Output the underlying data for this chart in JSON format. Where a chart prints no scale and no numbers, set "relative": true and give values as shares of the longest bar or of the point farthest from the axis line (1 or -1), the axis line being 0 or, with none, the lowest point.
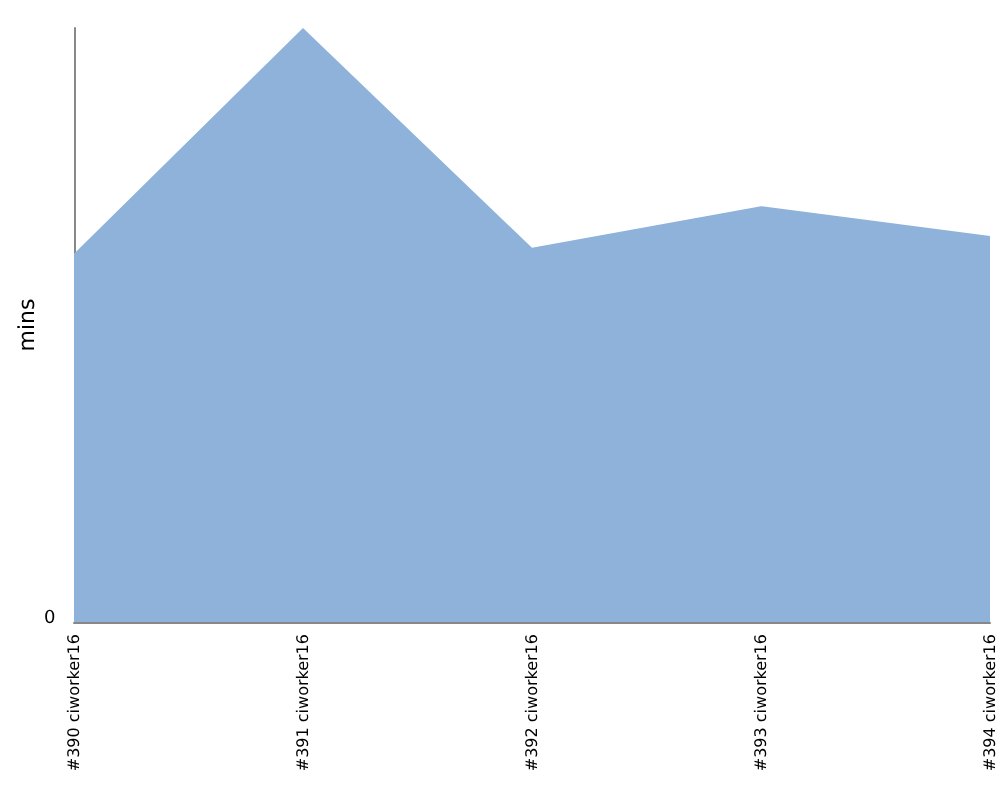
{
  "chart_data": {
    "type": "area",
    "ylabel": "mins",
    "relative": true,
    "annotations": [
      "0"
    ],
    "categories": [
      "#390 ciworker16",
      "#391 ciworker16",
      "#392 ciworker16",
      "#393 ciworker16",
      "#394 ciworker16"
    ],
    "series": [
      {
        "color": "#8fb2da",
        "values": [
          0.62,
          1,
          0.63,
          0.7,
          0.65
        ]
      }
    ],
    "grid": false
  }
}
